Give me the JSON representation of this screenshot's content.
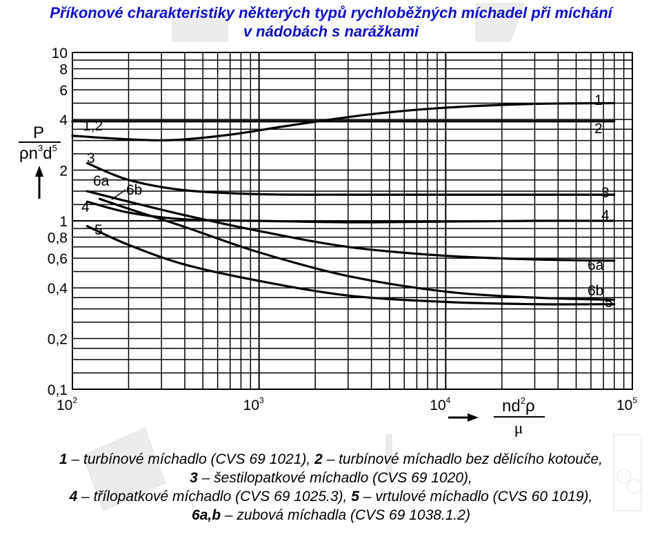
{
  "title": {
    "line1": "Příkonové charakteristiky některých typů rychloběžných míchadel při míchání",
    "line2": "v nádobách s narážkami"
  },
  "chart_data": {
    "type": "line",
    "x_scale": "log",
    "y_scale": "log",
    "xlim": [
      100,
      100000
    ],
    "ylim": [
      0.1,
      10
    ],
    "grid": true,
    "x_tick_labels": [
      {
        "value": 100,
        "base": "10",
        "exp": "2"
      },
      {
        "value": 1000,
        "base": "10",
        "exp": "3"
      },
      {
        "value": 10000,
        "base": "10",
        "exp": "4"
      },
      {
        "value": 100000,
        "base": "10",
        "exp": "5"
      }
    ],
    "y_tick_labels": [
      {
        "value": 10,
        "label": "10"
      },
      {
        "value": 8,
        "label": "8"
      },
      {
        "value": 6,
        "label": "6"
      },
      {
        "value": 4,
        "label": "4"
      },
      {
        "value": 2,
        "label": "2"
      },
      {
        "value": 1,
        "label": "1"
      },
      {
        "value": 0.8,
        "label": "0,8"
      },
      {
        "value": 0.6,
        "label": "0,6"
      },
      {
        "value": 0.4,
        "label": "0,4"
      },
      {
        "value": 0.2,
        "label": "0,2"
      },
      {
        "value": 0.1,
        "label": "0,1"
      }
    ],
    "ylabel": {
      "numerator": "P",
      "denominator_main": "ρn",
      "denominator_exp1": "3",
      "denominator_mid": "d",
      "denominator_exp2": "5"
    },
    "xlabel": {
      "numerator_main": "nd",
      "numerator_exp": "2",
      "numerator_end": "ρ",
      "denominator": "μ"
    },
    "series": [
      {
        "name": "1",
        "x": [
          100,
          200,
          350,
          700,
          1500,
          4000,
          10000,
          30000,
          80000
        ],
        "y": [
          3.2,
          3.05,
          3.02,
          3.25,
          3.7,
          4.3,
          4.7,
          4.95,
          5.0
        ]
      },
      {
        "name": "2",
        "x": [
          100,
          300,
          1000,
          10000,
          80000
        ],
        "y": [
          3.9,
          3.9,
          3.9,
          3.9,
          3.9
        ]
      },
      {
        "name": "3",
        "x": [
          120,
          200,
          400,
          1000,
          3000,
          10000,
          30000,
          80000
        ],
        "y": [
          2.2,
          1.75,
          1.52,
          1.44,
          1.43,
          1.43,
          1.43,
          1.43
        ]
      },
      {
        "name": "4",
        "x": [
          120,
          200,
          400,
          1000,
          3000,
          10000,
          30000,
          80000
        ],
        "y": [
          1.3,
          1.12,
          1.02,
          1.0,
          0.98,
          0.99,
          1.0,
          1.0
        ]
      },
      {
        "name": "6a",
        "x": [
          120,
          200,
          400,
          1000,
          3000,
          10000,
          30000,
          80000
        ],
        "y": [
          1.5,
          1.3,
          1.08,
          0.87,
          0.7,
          0.62,
          0.59,
          0.58
        ]
      },
      {
        "name": "6b",
        "x": [
          140,
          200,
          400,
          1000,
          3000,
          10000,
          30000,
          80000
        ],
        "y": [
          1.35,
          1.18,
          0.92,
          0.65,
          0.47,
          0.38,
          0.35,
          0.34
        ]
      },
      {
        "name": "5",
        "x": [
          120,
          200,
          400,
          1000,
          3000,
          10000,
          30000,
          80000
        ],
        "y": [
          0.93,
          0.72,
          0.55,
          0.44,
          0.36,
          0.33,
          0.32,
          0.32
        ]
      }
    ],
    "curve_labels_left": [
      {
        "text": "1,2",
        "series": [
          "1",
          "2"
        ]
      },
      {
        "text": "3",
        "series": [
          "3"
        ]
      },
      {
        "text": "6a",
        "series": [
          "6a"
        ]
      },
      {
        "text": "6b",
        "series": [
          "6b"
        ]
      },
      {
        "text": "4",
        "series": [
          "4"
        ]
      },
      {
        "text": "5",
        "series": [
          "5"
        ]
      }
    ],
    "curve_labels_right": [
      "1",
      "2",
      "3",
      "4",
      "6a",
      "6b",
      "5"
    ]
  },
  "caption": {
    "l1_n1": "1",
    "l1_t1": " – turbínové míchadlo (CVS 69 1021), ",
    "l1_n2": "2",
    "l1_t2": " – turbínové míchadlo bez dělícího kotouče,",
    "l2_n1": "3",
    "l2_t1": " – šestilopatkové míchadlo (CVS 69 1020),",
    "l3_n1": "4",
    "l3_t1": " – třílopatkové míchadlo (CVS 69 1025.3), ",
    "l3_n2": "5",
    "l3_t2": " – vrtulové míchadlo (CVS 60 1019),",
    "l4_n1": "6a,b",
    "l4_t1": " – zubová míchadla (CVS 69 1038.1.2)"
  },
  "colors": {
    "title": "#1010c8",
    "ink": "#000000",
    "grid": "#000000",
    "watermark": "#e8e8e8"
  }
}
